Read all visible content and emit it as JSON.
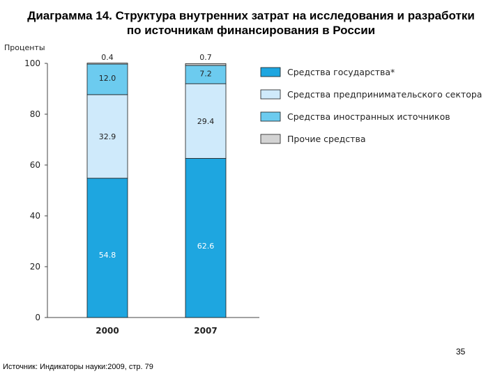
{
  "title_line1": "Диаграмма 14. Структура внутренних затрат на исследования и разработки",
  "title_line2": "по источникам финансирования в России",
  "page_number": "35",
  "source": "Источник: Индикаторы науки:2009, стр. 79",
  "chart_data": {
    "type": "bar",
    "stacked": true,
    "ylabel": "Проценты",
    "ylim": [
      0,
      100
    ],
    "yticks": [
      0,
      20,
      40,
      60,
      80,
      100
    ],
    "categories": [
      "2000",
      "2007"
    ],
    "series": [
      {
        "name": "Средства государства*",
        "color": "#1ea6e0",
        "values": [
          54.8,
          62.6
        ]
      },
      {
        "name": "Средства предпринимательского сектора",
        "color": "#cfeafb",
        "values": [
          32.9,
          29.4
        ]
      },
      {
        "name": "Средства иностранных источников",
        "color": "#6ccbef",
        "values": [
          12.0,
          7.2
        ]
      },
      {
        "name": "Прочие средства",
        "color": "#d3d3d3",
        "values": [
          0.4,
          0.7
        ]
      }
    ],
    "legend_position": "right"
  }
}
